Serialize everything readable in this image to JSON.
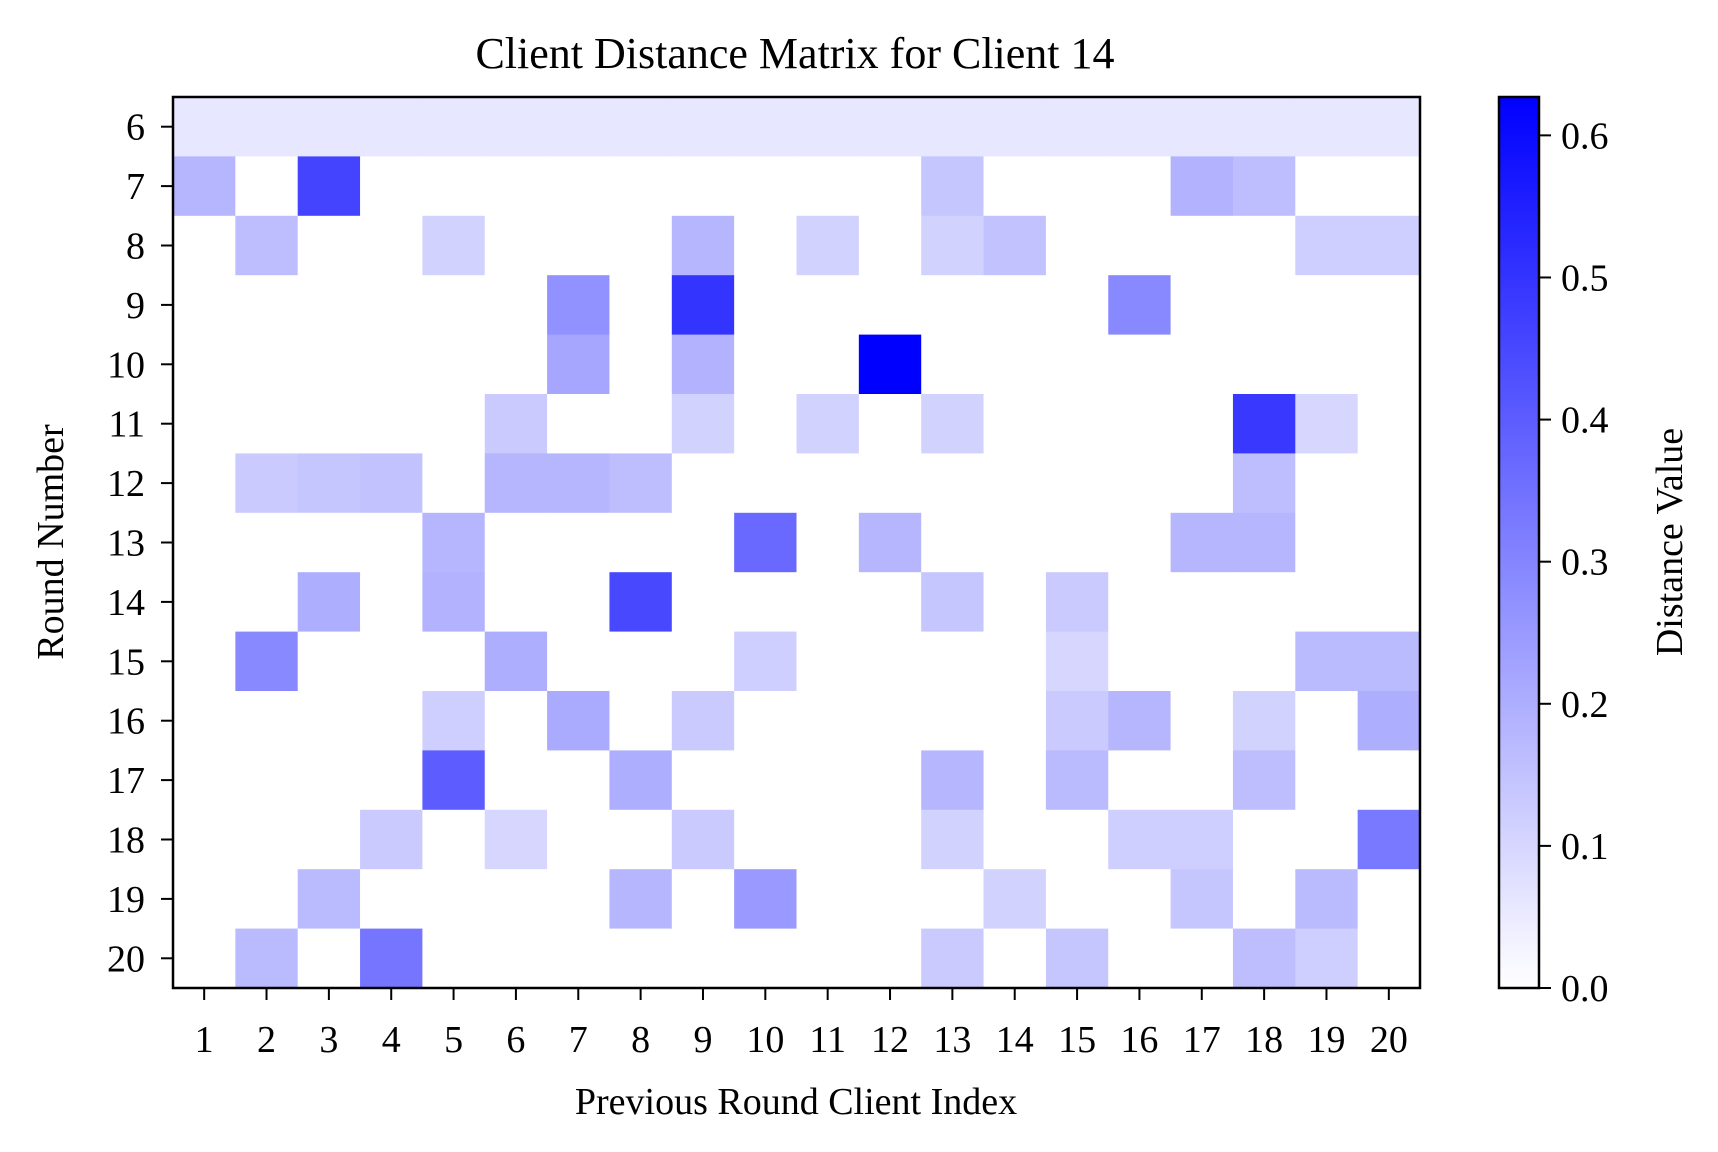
{
  "chart_data": {
    "type": "heatmap",
    "title": "Client Distance Matrix for Client 14",
    "xlabel": "Previous Round Client Index",
    "ylabel": "Round Number",
    "colorbar_label": "Distance Value",
    "x_categories": [
      "1",
      "2",
      "3",
      "4",
      "5",
      "6",
      "7",
      "8",
      "9",
      "10",
      "11",
      "12",
      "13",
      "14",
      "15",
      "16",
      "17",
      "18",
      "19",
      "20"
    ],
    "y_categories": [
      "6",
      "7",
      "8",
      "9",
      "10",
      "11",
      "12",
      "13",
      "14",
      "15",
      "16",
      "17",
      "18",
      "19",
      "20"
    ],
    "colorbar_ticks": [
      "0.0",
      "0.1",
      "0.2",
      "0.3",
      "0.4",
      "0.5",
      "0.6"
    ],
    "value_range": [
      0,
      0.627
    ],
    "colormap": [
      "#ffffff",
      "#0000ff"
    ],
    "values": [
      [
        0.06,
        0.06,
        0.06,
        0.06,
        0.06,
        0.06,
        0.06,
        0.06,
        0.06,
        0.06,
        0.06,
        0.06,
        0.06,
        0.06,
        0.06,
        0.06,
        0.06,
        0.06,
        0.06,
        0.06
      ],
      [
        0.18,
        0,
        0.46,
        0,
        0,
        0,
        0,
        0,
        0,
        0,
        0,
        0,
        0.14,
        0,
        0,
        0,
        0.19,
        0.16,
        0,
        0
      ],
      [
        0,
        0.16,
        0,
        0,
        0.11,
        0,
        0,
        0,
        0.18,
        0,
        0.11,
        0,
        0.11,
        0.15,
        0,
        0,
        0,
        0,
        0.12,
        0.12
      ],
      [
        0,
        0,
        0,
        0,
        0,
        0,
        0.27,
        0,
        0.5,
        0,
        0,
        0,
        0,
        0,
        0,
        0.29,
        0,
        0,
        0,
        0
      ],
      [
        0,
        0,
        0,
        0,
        0,
        0,
        0.22,
        0,
        0.19,
        0,
        0,
        0.627,
        0,
        0,
        0,
        0,
        0,
        0,
        0,
        0
      ],
      [
        0,
        0,
        0,
        0,
        0,
        0.13,
        0,
        0,
        0.11,
        0,
        0.11,
        0,
        0.11,
        0,
        0,
        0,
        0,
        0.49,
        0.1,
        0
      ],
      [
        0,
        0.13,
        0.14,
        0.15,
        0,
        0.18,
        0.18,
        0.16,
        0,
        0,
        0,
        0,
        0,
        0,
        0,
        0,
        0,
        0.16,
        0,
        0
      ],
      [
        0,
        0,
        0,
        0,
        0.18,
        0,
        0,
        0,
        0,
        0.37,
        0,
        0.18,
        0,
        0,
        0,
        0,
        0.18,
        0.18,
        0,
        0
      ],
      [
        0,
        0,
        0.2,
        0,
        0.19,
        0,
        0,
        0.45,
        0,
        0,
        0,
        0,
        0.14,
        0,
        0.13,
        0,
        0,
        0,
        0,
        0
      ],
      [
        0,
        0.29,
        0,
        0,
        0,
        0.2,
        0,
        0,
        0,
        0.12,
        0,
        0,
        0,
        0,
        0.1,
        0,
        0,
        0,
        0.17,
        0.17
      ],
      [
        0,
        0,
        0,
        0,
        0.12,
        0,
        0.21,
        0,
        0.13,
        0,
        0,
        0,
        0,
        0,
        0.13,
        0.18,
        0,
        0.11,
        0,
        0.2
      ],
      [
        0,
        0,
        0,
        0,
        0.4,
        0,
        0,
        0.2,
        0,
        0,
        0,
        0,
        0.18,
        0,
        0.17,
        0,
        0,
        0.16,
        0,
        0
      ],
      [
        0,
        0,
        0,
        0.13,
        0,
        0.1,
        0,
        0,
        0.13,
        0,
        0,
        0,
        0.11,
        0,
        0,
        0.12,
        0.12,
        0,
        0,
        0.33
      ],
      [
        0,
        0,
        0.17,
        0,
        0,
        0,
        0,
        0.18,
        0,
        0.25,
        0,
        0,
        0,
        0.11,
        0,
        0,
        0.14,
        0,
        0.17,
        0
      ],
      [
        0,
        0.17,
        0,
        0.34,
        0,
        0,
        0,
        0,
        0,
        0,
        0,
        0,
        0.13,
        0,
        0.14,
        0,
        0,
        0.16,
        0.12,
        0
      ]
    ]
  }
}
